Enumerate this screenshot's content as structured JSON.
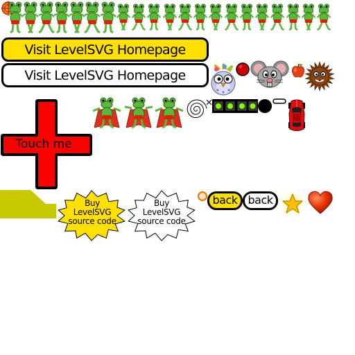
{
  "header": {
    "frog_frames": 21
  },
  "buttons": {
    "visit_yellow": "Visit LevelSVG Homepage",
    "visit_white": "Visit LevelSVG Homepage",
    "touch_me": "Touch me",
    "buy_yellow": [
      "Buy",
      "LevelSVG",
      "source code"
    ],
    "buy_white": [
      "Buy",
      "LevelSVG",
      "source code"
    ],
    "back_yellow": "back",
    "back_white": "back"
  },
  "colors": {
    "yellow": "#ffe000",
    "red": "#ff0000",
    "frog_green": "#5cb83a",
    "olive": "#c8c800",
    "dark_red": "#cc0000"
  },
  "icons": [
    "crosshair-icon",
    "frog-sprite",
    "owl-monster",
    "red-ball-icon",
    "mouse-monster",
    "apple-icon",
    "hedgehog-monster",
    "superhero-frog",
    "spiral-icon",
    "close-x-icon",
    "conveyor-belt",
    "black-ball-icon",
    "dash-icon",
    "red-car",
    "olive-ramp",
    "orange-ring-icon",
    "gold-star-icon",
    "red-heart-icon"
  ]
}
